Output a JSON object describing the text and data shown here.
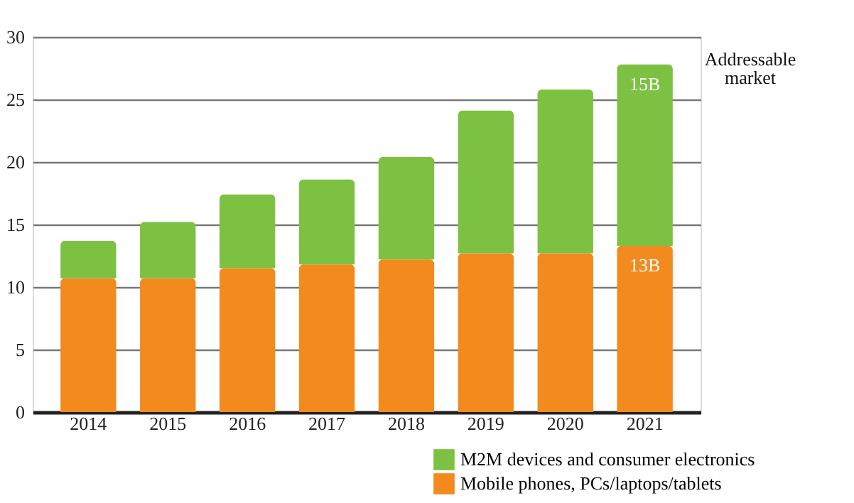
{
  "chart_data": {
    "type": "bar",
    "stacked": true,
    "categories": [
      "2014",
      "2015",
      "2016",
      "2017",
      "2018",
      "2019",
      "2020",
      "2021"
    ],
    "series": [
      {
        "name": "Mobile phones, PCs/laptops/tablets",
        "color": "#f28a1e",
        "values": [
          10.7,
          10.7,
          11.5,
          11.8,
          12.2,
          12.7,
          12.7,
          13.3
        ],
        "value_labels": [
          null,
          null,
          null,
          null,
          null,
          null,
          null,
          "13B"
        ]
      },
      {
        "name": "M2M devices and consumer electronics",
        "color": "#7dc142",
        "values": [
          3.0,
          4.5,
          5.9,
          6.8,
          8.2,
          11.4,
          13.1,
          14.5
        ],
        "value_labels": [
          null,
          null,
          null,
          null,
          null,
          null,
          null,
          "15B"
        ]
      }
    ],
    "ylim": [
      0,
      30
    ],
    "yticks": [
      0,
      5,
      10,
      15,
      20,
      25,
      30
    ],
    "grid": "y",
    "legend": "bottom right",
    "annotations": [
      "Addressable market"
    ]
  }
}
